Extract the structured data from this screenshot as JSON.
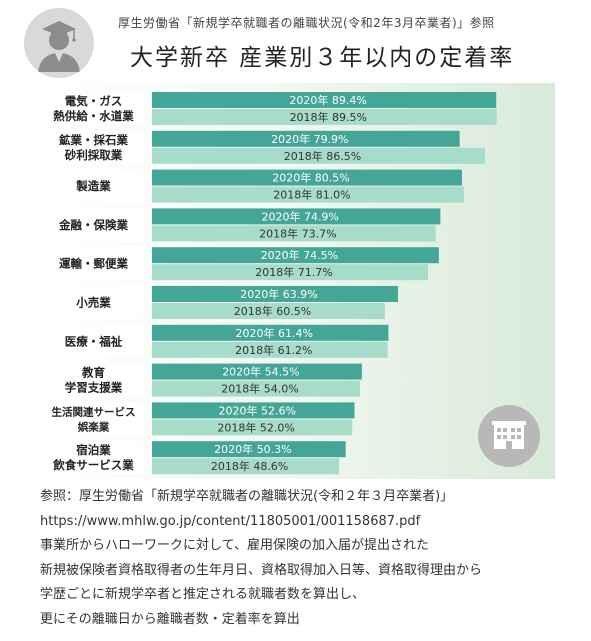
{
  "header": {
    "source_line": "厚生労働省「新規学卒就職者の離職状況(令和2年3月卒業者)」参照",
    "title": "大学新卒 産業別３年以内の定着率"
  },
  "icons": {
    "avatar": "graduate-icon",
    "building": "building-icon"
  },
  "colors": {
    "bar_2020": "#43a696",
    "bar_2018": "#a8dcca",
    "label_box": "#ffffff",
    "panel_gradient_end": "#d8ead9",
    "text_on_bar_2020": "#ffffff",
    "text_on_bar_2018": "#333333"
  },
  "chart_data": {
    "type": "bar",
    "orientation": "horizontal",
    "unit": "%",
    "xlim": [
      0,
      100
    ],
    "grid": false,
    "series_labels": [
      "2020年",
      "2018年"
    ],
    "categories": [
      [
        "電気・ガス",
        "熱供給・水道業"
      ],
      [
        "鉱業・採石業",
        "砂利採取業"
      ],
      [
        "製造業"
      ],
      [
        "金融・保険業"
      ],
      [
        "運輸・郵便業"
      ],
      [
        "小売業"
      ],
      [
        "医療・福祉"
      ],
      [
        "教育",
        "学習支援業"
      ],
      [
        "生活関連サービス",
        "娯楽業"
      ],
      [
        "宿泊業",
        "飲食サービス業"
      ]
    ],
    "series": [
      {
        "name": "2020年",
        "values": [
          89.4,
          79.9,
          80.5,
          74.9,
          74.5,
          63.9,
          61.4,
          54.5,
          52.6,
          50.3
        ]
      },
      {
        "name": "2018年",
        "values": [
          89.5,
          86.5,
          81.0,
          73.7,
          71.7,
          60.5,
          61.2,
          54.0,
          52.0,
          48.6
        ]
      }
    ]
  },
  "footnotes": {
    "line1": "参照：厚生労働省「新規学卒就職者の離職状況(令和２年３月卒業者)」",
    "line2": "https://www.mhlw.go.jp/content/11805001/001158687.pdf",
    "line3": "事業所からハローワークに対して、雇用保険の加入届が提出された",
    "line4": "新規被保険者資格取得者の生年月日、資格取得加入日等、資格取得理由から",
    "line5": "学歴ごとに新規学卒者と推定される就職者数を算出し、",
    "line6": "更にその離職日から離職者数・定着率を算出"
  }
}
